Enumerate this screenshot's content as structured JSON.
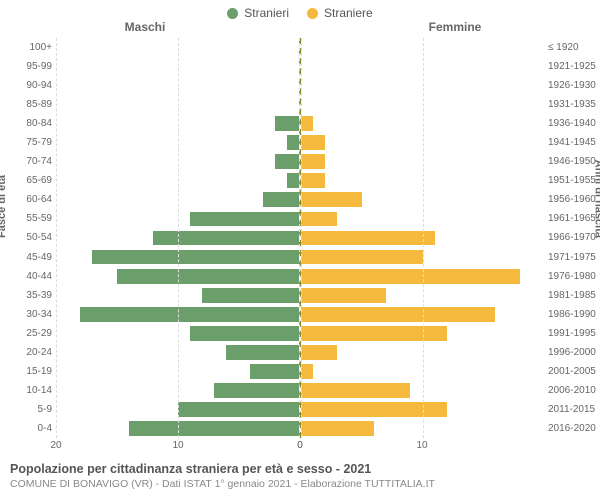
{
  "chart": {
    "type": "pyramid-bar",
    "background_color": "#ffffff",
    "grid_color": "#dddddd",
    "axis_dash_color": "#8a8a33",
    "text_color": "#555555",
    "legend": [
      {
        "label": "Stranieri",
        "color": "#6b9e6b"
      },
      {
        "label": "Straniere",
        "color": "#f5b93e"
      }
    ],
    "header_left": "Maschi",
    "header_right": "Femmine",
    "ylabel_left": "Fasce di età",
    "ylabel_right": "Anni di nascita",
    "xmax": 20,
    "xticks_left": [
      20,
      10,
      0
    ],
    "xticks_right": [
      0,
      10
    ],
    "categories_left": [
      "100+",
      "95-99",
      "90-94",
      "85-89",
      "80-84",
      "75-79",
      "70-74",
      "65-69",
      "60-64",
      "55-59",
      "50-54",
      "45-49",
      "40-44",
      "35-39",
      "30-34",
      "25-29",
      "20-24",
      "15-19",
      "10-14",
      "5-9",
      "0-4"
    ],
    "categories_right": [
      "≤ 1920",
      "1921-1925",
      "1926-1930",
      "1931-1935",
      "1936-1940",
      "1941-1945",
      "1946-1950",
      "1951-1955",
      "1956-1960",
      "1961-1965",
      "1966-1970",
      "1971-1975",
      "1976-1980",
      "1981-1985",
      "1986-1990",
      "1991-1995",
      "1996-2000",
      "2001-2005",
      "2006-2010",
      "2011-2015",
      "2016-2020"
    ],
    "values_male": [
      0,
      0,
      0,
      0,
      2,
      1,
      2,
      1,
      3,
      9,
      12,
      17,
      15,
      8,
      18,
      9,
      6,
      4,
      7,
      10,
      14
    ],
    "values_female": [
      0,
      0,
      0,
      0,
      1,
      2,
      2,
      2,
      5,
      3,
      11,
      10,
      18,
      7,
      16,
      12,
      3,
      1,
      9,
      12,
      6
    ],
    "label_fontsize": 10,
    "bar_height_pct": 78
  },
  "caption": {
    "title": "Popolazione per cittadinanza straniera per età e sesso - 2021",
    "subtitle": "COMUNE DI BONAVIGO (VR) - Dati ISTAT 1° gennaio 2021 - Elaborazione TUTTITALIA.IT"
  }
}
